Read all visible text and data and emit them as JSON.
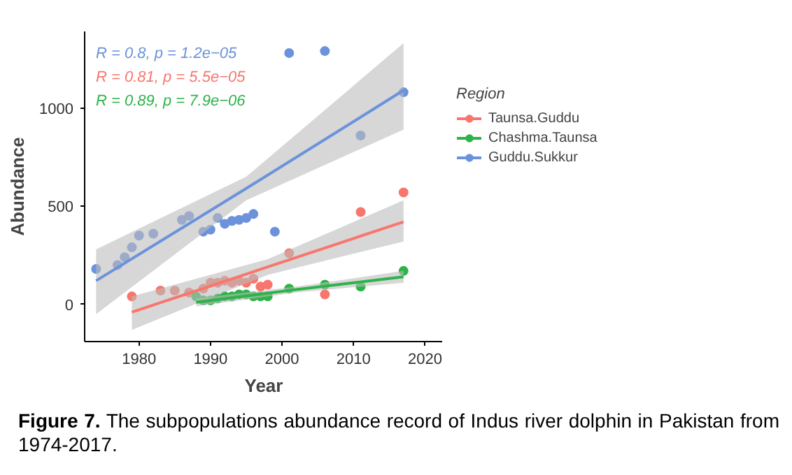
{
  "chart_data": {
    "type": "scatter",
    "xlabel": "Year",
    "ylabel": "Abundance",
    "legend_title": "Region",
    "legend": "right",
    "grid": false,
    "marker": "circle",
    "xlim": [
      1972.4,
      2022.5
    ],
    "xticks": [
      1980,
      1990,
      2000,
      2010,
      2020
    ],
    "ylim": [
      -190,
      1390
    ],
    "yticks": [
      0,
      500,
      1000
    ],
    "series": [
      {
        "name": "Taunsa.Guddu",
        "color": "#f8766d",
        "x": [
          1979,
          1983,
          1985,
          1987,
          1989,
          1990,
          1991,
          1992,
          1993,
          1994,
          1995,
          1996,
          1997,
          1998,
          2001,
          2006,
          2011,
          2017
        ],
        "values": [
          40,
          70,
          70,
          60,
          80,
          110,
          110,
          120,
          110,
          120,
          110,
          130,
          90,
          100,
          260,
          50,
          470,
          570
        ]
      },
      {
        "name": "Chashma.Taunsa",
        "color": "#2eb34a",
        "x": [
          1988,
          1989,
          1990,
          1991,
          1992,
          1993,
          1994,
          1995,
          1996,
          1997,
          1998,
          2001,
          2006,
          2011,
          2017
        ],
        "values": [
          40,
          20,
          20,
          30,
          40,
          40,
          50,
          50,
          40,
          40,
          40,
          80,
          100,
          90,
          170
        ]
      },
      {
        "name": "Guddu.Sukkur",
        "color": "#6b92db",
        "x": [
          1974,
          1977,
          1978,
          1979,
          1980,
          1982,
          1986,
          1987,
          1989,
          1990,
          1991,
          1992,
          1993,
          1994,
          1995,
          1996,
          1999,
          2001,
          2006,
          2011,
          2017
        ],
        "values": [
          180,
          200,
          240,
          290,
          350,
          360,
          430,
          450,
          370,
          380,
          440,
          410,
          425,
          430,
          440,
          460,
          370,
          1280,
          1290,
          860,
          1080
        ]
      },
      {
        "type": "line",
        "marker": "none",
        "color": "#f8766d",
        "x": [
          1979,
          1998,
          2017
        ],
        "values": [
          -40,
          190,
          420
        ],
        "lower": [
          -130,
          150,
          320
        ],
        "upper": [
          40,
          230,
          530
        ]
      },
      {
        "type": "line",
        "marker": "none",
        "color": "#2eb34a",
        "x": [
          1988,
          2002,
          2017
        ],
        "values": [
          10,
          75,
          140
        ],
        "lower": [
          -10,
          60,
          110
        ],
        "upper": [
          30,
          90,
          170
        ]
      },
      {
        "type": "line",
        "marker": "none",
        "color": "#6b92db",
        "x": [
          1974,
          1995,
          2017
        ],
        "values": [
          120,
          590,
          1090
        ],
        "lower": [
          -50,
          530,
          890
        ],
        "upper": [
          280,
          650,
          1330
        ]
      }
    ],
    "annotations": [
      "R = 0.8,  p = 1.2e−05",
      "R = 0.81, p = 5.5e−05",
      "R = 0.89, p = 7.9e−06",
      "Figure 7. The subpopulations abundance record of Indus river dolphin in Pakistan from 1974-2017."
    ]
  }
}
